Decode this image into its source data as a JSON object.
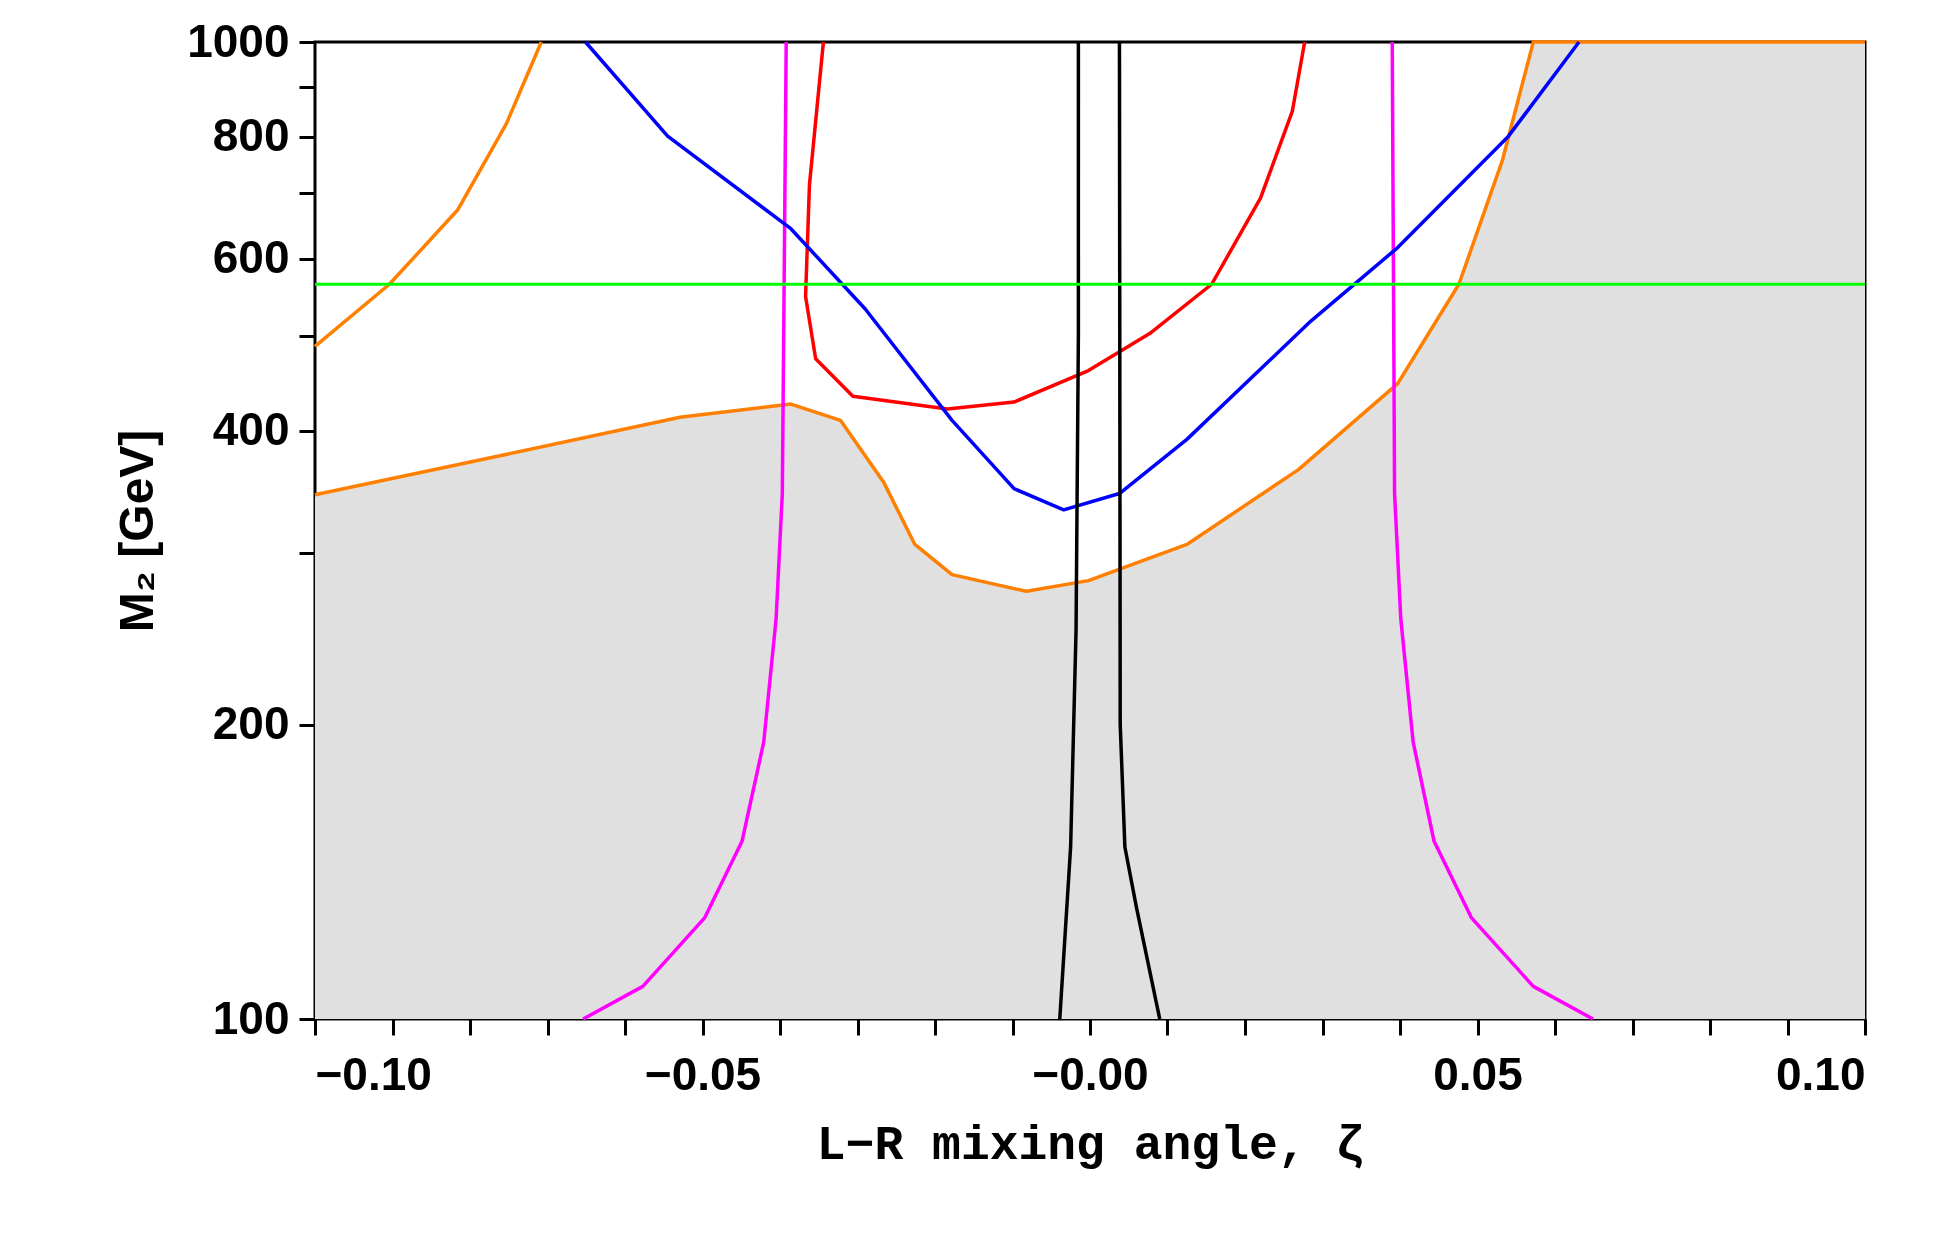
{
  "chart_data": {
    "type": "line",
    "xlabel": "L−R mixing angle, ζ",
    "ylabel": "M₂ [GeV]",
    "log": "y",
    "xlim": [
      -0.1,
      0.1
    ],
    "ylim": [
      100,
      1000
    ],
    "xticks": [
      {
        "value": -0.1,
        "label": "−0.10"
      },
      {
        "value": -0.09,
        "label": null
      },
      {
        "value": -0.08,
        "label": null
      },
      {
        "value": -0.07,
        "label": null
      },
      {
        "value": -0.06,
        "label": null
      },
      {
        "value": -0.05,
        "label": "−0.05"
      },
      {
        "value": -0.04,
        "label": null
      },
      {
        "value": -0.03,
        "label": null
      },
      {
        "value": -0.02,
        "label": null
      },
      {
        "value": -0.01,
        "label": null
      },
      {
        "value": 0,
        "label": "−0.00"
      },
      {
        "value": 0.01,
        "label": null
      },
      {
        "value": 0.02,
        "label": null
      },
      {
        "value": 0.03,
        "label": null
      },
      {
        "value": 0.04,
        "label": null
      },
      {
        "value": 0.05,
        "label": "0.05"
      },
      {
        "value": 0.06,
        "label": null
      },
      {
        "value": 0.07,
        "label": null
      },
      {
        "value": 0.08,
        "label": null
      },
      {
        "value": 0.09,
        "label": null
      },
      {
        "value": 0.1,
        "label": "0.10"
      }
    ],
    "yticks": [
      100,
      200,
      {
        "value": 300,
        "label": null
      },
      400,
      {
        "value": 500,
        "label": null
      },
      600,
      {
        "value": 700,
        "label": null
      },
      800,
      {
        "value": 900,
        "label": null
      },
      1000
    ],
    "ref_lines": [
      {
        "axis": "y",
        "value": 565,
        "color": "#00ff00"
      }
    ],
    "series": [
      {
        "type": "area",
        "color": "#ff8000",
        "colors": [
          "#e0e0e0",
          "#e0e0e0",
          "#e0e0e0",
          "#e0e0e0",
          "#e0e0e0",
          "#e0e0e0",
          "#e0e0e0",
          "#e0e0e0",
          "#e0e0e0",
          "#e0e0e0",
          "#e0e0e0",
          "#e0e0e0",
          "#e0e0e0",
          "#e0e0e0",
          "#e0e0e0",
          "#e0e0e0",
          "#e0e0e0"
        ],
        "x": [
          -0.1,
          -0.0769,
          -0.0529,
          -0.0386,
          -0.0322,
          -0.0266,
          -0.0226,
          -0.0178,
          -0.0082,
          -0.0002,
          0.0125,
          0.0269,
          0.0397,
          0.0476,
          0.0532,
          0.0572,
          0.1
        ],
        "values": [
          344,
          376,
          413,
          426,
          410,
          354,
          306,
          285,
          274,
          281,
          306,
          365,
          447,
          565,
          756,
          1000,
          1000
        ]
      },
      {
        "color": "#ff8000",
        "x": [
          -0.1,
          -0.0904,
          -0.0816,
          -0.0753,
          -0.0708
        ],
        "values": [
          488,
          565,
          673,
          825,
          1000
        ]
      },
      {
        "color": "#ff00ff",
        "x": [
          -0.0654,
          -0.0577,
          -0.0497,
          -0.0449,
          -0.0421,
          -0.0405,
          -0.0397,
          -0.0392
        ],
        "values": [
          100,
          108,
          127,
          152,
          192,
          257,
          345,
          1000
        ]
      },
      {
        "color": "#ff00ff",
        "x": [
          0.0649,
          0.0572,
          0.0492,
          0.0444,
          0.0417,
          0.0401,
          0.0393,
          0.039
        ],
        "values": [
          100,
          108,
          127,
          152,
          192,
          257,
          345,
          1000
        ]
      },
      {
        "color": "#ff0000",
        "x": [
          -0.0344,
          -0.0362,
          -0.0367,
          -0.0354,
          -0.0306,
          -0.0184,
          -0.0098,
          -0.0002,
          0.0077,
          0.0157,
          0.022,
          0.0261,
          0.0277
        ],
        "values": [
          1000,
          714,
          549,
          474,
          434,
          421,
          428,
          461,
          503,
          565,
          692,
          849,
          1000
        ]
      },
      {
        "color": "#0000ff",
        "x": [
          -0.0651,
          -0.0545,
          -0.0386,
          -0.029,
          -0.0178,
          -0.0098,
          -0.0034,
          0.0038,
          0.0125,
          0.0285,
          0.0397,
          0.054,
          0.0631
        ],
        "values": [
          1000,
          801,
          644,
          533,
          410,
          349,
          332,
          345,
          392,
          518,
          616,
          801,
          1000
        ]
      },
      {
        "color": "#000000",
        "x": [
          -0.0039,
          -0.0025,
          -0.0018,
          -0.0015,
          -0.0015
        ],
        "values": [
          100,
          150,
          250,
          500,
          1000
        ]
      },
      {
        "color": "#000000",
        "x": [
          0.009,
          0.006,
          0.0045,
          0.0039,
          0.0038
        ],
        "values": [
          100,
          130,
          150,
          200,
          1000
        ]
      }
    ]
  }
}
